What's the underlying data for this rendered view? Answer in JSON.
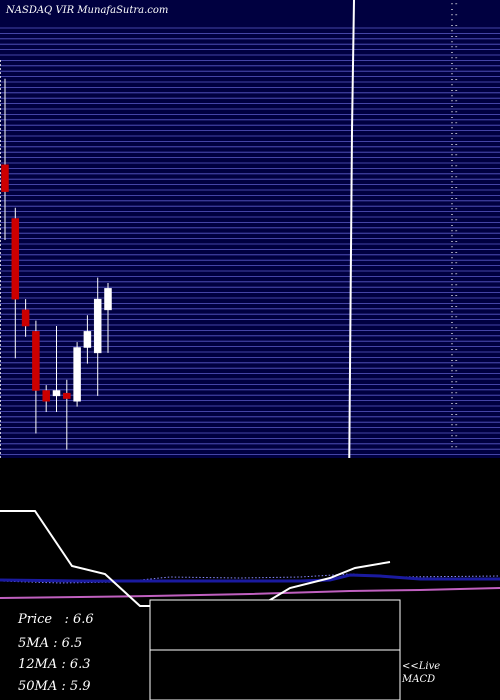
{
  "header": {
    "title": "NASDAQ VIR MunafaSutra.com"
  },
  "colors": {
    "background": "#000000",
    "panel": "#000040",
    "grid": "#5a5ac8",
    "up_candle": "#ffffff",
    "down_candle": "#cc0000",
    "ma_line": "#ffffff",
    "indicator_line": "#1a1aa0",
    "signal_line": "#c060c0"
  },
  "stats": {
    "price": "Price   : 6.6",
    "ma5": "5MA : 6.5",
    "ma12": "12MA : 6.3",
    "ma50": "50MA : 5.9"
  },
  "footer": {
    "live": "<<Live",
    "macd": "MACD"
  },
  "chart_data": {
    "type": "candlestick",
    "title": "NASDAQ VIR MunafaSutra.com",
    "ylim": [
      4.5,
      12.5
    ],
    "candles": [
      {
        "o": 9.9,
        "h": 11.5,
        "l": 8.5,
        "c": 9.4,
        "dir": "down"
      },
      {
        "o": 8.9,
        "h": 9.1,
        "l": 6.3,
        "c": 7.4,
        "dir": "down"
      },
      {
        "o": 7.2,
        "h": 7.4,
        "l": 6.7,
        "c": 6.9,
        "dir": "down"
      },
      {
        "o": 6.8,
        "h": 7.0,
        "l": 4.9,
        "c": 5.7,
        "dir": "down"
      },
      {
        "o": 5.7,
        "h": 5.8,
        "l": 5.3,
        "c": 5.5,
        "dir": "down"
      },
      {
        "o": 5.6,
        "h": 6.9,
        "l": 5.3,
        "c": 5.7,
        "dir": "up"
      },
      {
        "o": 5.65,
        "h": 5.9,
        "l": 4.6,
        "c": 5.55,
        "dir": "down"
      },
      {
        "o": 5.5,
        "h": 6.6,
        "l": 5.4,
        "c": 6.5,
        "dir": "up"
      },
      {
        "o": 6.5,
        "h": 7.1,
        "l": 6.2,
        "c": 6.8,
        "dir": "up"
      },
      {
        "o": 6.4,
        "h": 7.8,
        "l": 5.6,
        "c": 7.4,
        "dir": "up"
      },
      {
        "o": 7.2,
        "h": 7.7,
        "l": 6.4,
        "c": 7.6,
        "dir": "up"
      }
    ],
    "moving_average": [
      4.5,
      6.9,
      11.8,
      12.0
    ],
    "indicator_values": [
      0.52,
      0.74,
      0.71,
      0.36,
      0.63
    ]
  }
}
